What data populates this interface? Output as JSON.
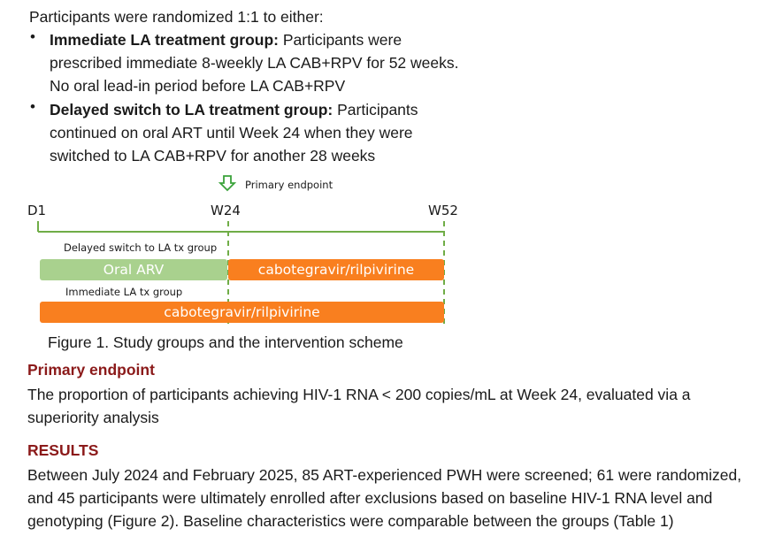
{
  "intro": "Participants were randomized 1:1 to either:",
  "bullets": [
    {
      "bold": "Immediate LA treatment group:",
      "lines": [
        " Participants were",
        "prescribed immediate 8-weekly LA CAB+RPV for 52 weeks.",
        "No oral lead-in period before LA CAB+RPV"
      ]
    },
    {
      "bold": "Delayed switch to LA treatment group:",
      "lines": [
        " Participants",
        "continued on oral ART until Week 24 when they were",
        "switched to LA CAB+RPV for another 28 weeks"
      ]
    }
  ],
  "diagram": {
    "endpoint_label": "Primary endpoint",
    "ticks": [
      "D1",
      "W24",
      "W52"
    ],
    "delayed_group_label": "Delayed switch to LA tx group",
    "oral_label": "Oral ARV",
    "cab_label_delayed": "cabotegravir/rilpivirine",
    "immediate_group_label": "Immediate LA tx group",
    "cab_label_immediate": "cabotegravir/rilpivirine",
    "colors": {
      "green": "#a9d18e",
      "orange": "#f97f1f",
      "line": "#70ad47",
      "arrow": "#3aa23a"
    }
  },
  "figure_caption": "Figure 1. Study groups and the intervention scheme",
  "primary_endpoint": {
    "heading": "Primary endpoint",
    "lines": [
      "The proportion of participants achieving HIV-1 RNA < 200 copies/mL at Week 24, evaluated via a",
      "superiority analysis"
    ]
  },
  "results": {
    "heading": "RESULTS",
    "lines": [
      "Between July 2024 and February 2025, 85 ART-experienced PWH were screened; 61 were randomized,",
      "and 45 participants were ultimately enrolled after exclusions based on baseline HIV-1 RNA level and",
      "genotyping (Figure 2). Baseline characteristics were comparable between the groups (Table 1)"
    ]
  }
}
